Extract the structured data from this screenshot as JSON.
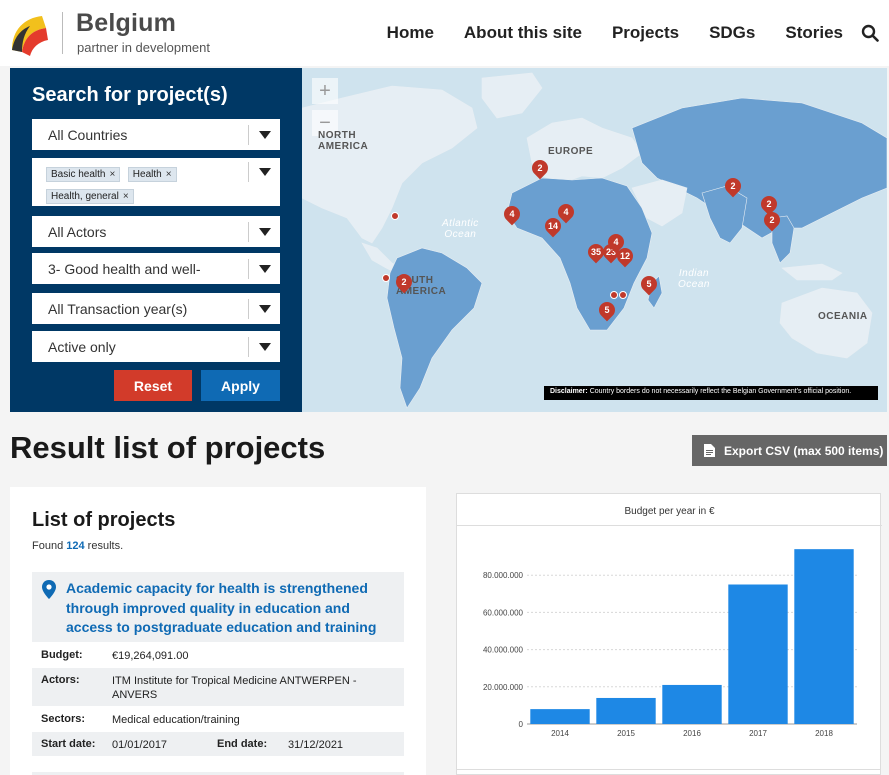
{
  "header": {
    "brand_name": "Belgium",
    "brand_tagline": "partner in development",
    "nav": [
      "Home",
      "About this site",
      "Projects",
      "SDGs",
      "Stories"
    ]
  },
  "search": {
    "title": "Search for project(s)",
    "countries": "All Countries",
    "sector_tags": [
      "Basic health",
      "Health",
      "Health, general"
    ],
    "actors": "All Actors",
    "sdg": "3- Good health and well-",
    "transaction_years": "All Transaction year(s)",
    "status": "Active only",
    "reset_label": "Reset",
    "apply_label": "Apply"
  },
  "map": {
    "zoom_in": "+",
    "zoom_out": "−",
    "labels": {
      "north_america": "NORTH\nAMERICA",
      "europe": "EUROPE",
      "south_america": "SOUTH\nAMERICA",
      "oceania": "OCEANIA",
      "atlantic": "Atlantic\nOcean",
      "indian": "Indian\nOcean"
    },
    "markers": [
      "2",
      "4",
      "4",
      "14",
      "35",
      "23",
      "4",
      "12",
      "2",
      "2",
      "2",
      "2",
      "5",
      "5"
    ],
    "disclaimer_label": "Disclaimer:",
    "disclaimer_text": " Country borders do not necessarily reflect the Belgian Government's official position."
  },
  "results": {
    "title": "Result list of projects",
    "export_label": "Export CSV (max 500 items)",
    "list_title": "List of projects",
    "found_prefix": "Found ",
    "found_count": "124",
    "found_suffix": " results."
  },
  "project": {
    "title": "Academic capacity for health is strengthened through improved quality in education and access to postgraduate education and training",
    "budget_label": "Budget:",
    "budget": "€19,264,091.00",
    "actors_label": "Actors:",
    "actors": "ITM Institute for Tropical Medicine ANTWERPEN - ANVERS",
    "sectors_label": "Sectors:",
    "sectors": "Medical education/training",
    "start_label": "Start date:",
    "start": "01/01/2017",
    "end_label": "End date:",
    "end": "31/12/2021"
  },
  "colors": {
    "navy": "#003865",
    "reset": "#d23b2a",
    "apply": "#0f6ab4",
    "bar": "#1e88e5",
    "land": "#6a9fd0",
    "marker": "#c0392b"
  },
  "chart_data": {
    "type": "bar",
    "title": "Budget per year in €",
    "categories": [
      "2014",
      "2015",
      "2016",
      "2017",
      "2018"
    ],
    "values": [
      8000000,
      14000000,
      21000000,
      75000000,
      94000000
    ],
    "yticks": [
      0,
      20000000,
      40000000,
      60000000,
      80000000
    ],
    "ytick_labels": [
      "0",
      "20.000.000",
      "40.000.000",
      "60.000.000",
      "80.000.000"
    ],
    "ylim": [
      0,
      100000000
    ],
    "grid": true,
    "xlabel": "",
    "ylabel": ""
  }
}
